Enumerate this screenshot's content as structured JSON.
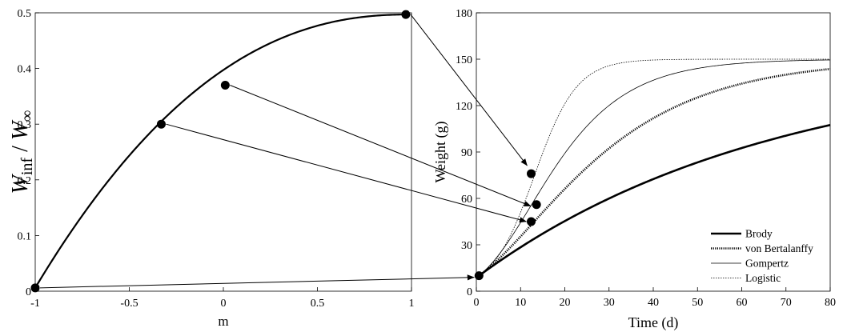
{
  "chart_data": [
    {
      "type": "line",
      "xlabel": "m",
      "ylabel": {
        "main": "W",
        "sub": "inf",
        "sep": " / ",
        "main2": "W",
        "sub2": "∞"
      },
      "xlim": [
        -1,
        1
      ],
      "ylim": [
        0,
        0.5
      ],
      "xticks": [
        -1,
        -0.5,
        0,
        0.5,
        1
      ],
      "xtick_labels": [
        "-1",
        "-0.5",
        "0",
        "0.5",
        "1"
      ],
      "yticks": [
        0,
        0.1,
        0.2,
        0.3,
        0.4,
        0.5
      ],
      "ytick_labels": [
        "0",
        "0.1",
        "0.2",
        "0.3",
        "0.4",
        "0.5"
      ],
      "curve": "Winf/W∞ as function of m",
      "marked_points": [
        {
          "x": -1,
          "y": 0.006
        },
        {
          "x": -0.33,
          "y": 0.3
        },
        {
          "x": 0.01,
          "y": 0.37
        },
        {
          "x": 0.97,
          "y": 0.497
        }
      ]
    },
    {
      "type": "line",
      "xlabel": "Time (d)",
      "ylabel": "Weight (g)",
      "xlim": [
        0,
        80
      ],
      "ylim": [
        0,
        180
      ],
      "xticks": [
        0,
        10,
        20,
        30,
        40,
        50,
        60,
        70,
        80
      ],
      "xtick_labels": [
        "0",
        "10",
        "20",
        "30",
        "40",
        "50",
        "60",
        "70",
        "80"
      ],
      "yticks": [
        0,
        30,
        60,
        90,
        120,
        150,
        180
      ],
      "ytick_labels": [
        "0",
        "30",
        "60",
        "90",
        "120",
        "150",
        "180"
      ],
      "legend_position": "bottom-right",
      "series": [
        {
          "name": "Brody",
          "model": "brody",
          "W0": 10,
          "Winf": 150,
          "k": 0.015,
          "style": "thick-solid"
        },
        {
          "name": "von Bertalanffy",
          "model": "bertalanffy",
          "W0": 10,
          "Winf": 150,
          "k": 0.047,
          "style": "thick-dotted"
        },
        {
          "name": "Gompertz",
          "model": "gompertz",
          "W0": 10,
          "Winf": 150,
          "k": 0.085,
          "style": "thin-solid"
        },
        {
          "name": "Logistic",
          "model": "logistic",
          "W0": 10,
          "Winf": 150,
          "k": 0.21,
          "style": "thin-dotted"
        }
      ],
      "marked_points": [
        {
          "x": 0.6,
          "y": 10
        },
        {
          "x": 12.4,
          "y": 45
        },
        {
          "x": 13.6,
          "y": 56
        },
        {
          "x": 12.4,
          "y": 76
        }
      ]
    }
  ],
  "arrows": [
    {
      "from": [
        0,
        0
      ],
      "to": [
        1,
        0
      ]
    },
    {
      "from": [
        0,
        1
      ],
      "to": [
        1,
        1
      ]
    },
    {
      "from": [
        0,
        2
      ],
      "to": [
        1,
        2
      ]
    },
    {
      "from": [
        0,
        3
      ],
      "to": [
        1,
        3
      ]
    }
  ]
}
